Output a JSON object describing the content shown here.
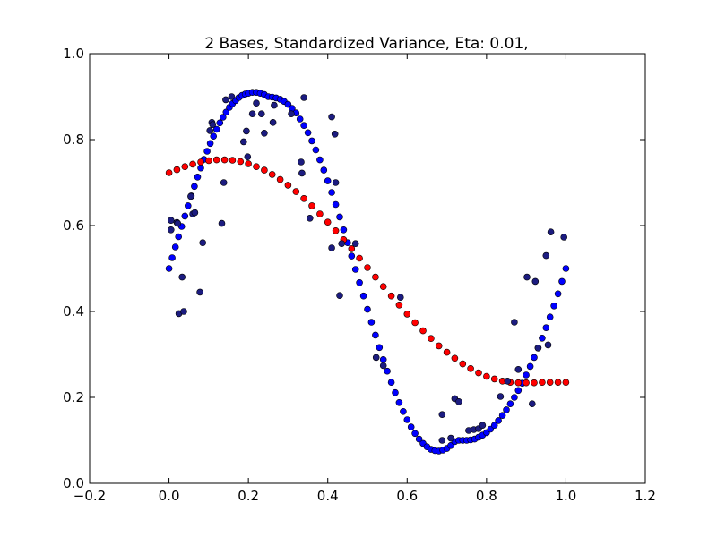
{
  "chart_data": {
    "type": "scatter",
    "title": "2 Bases, Standardized Variance, Eta: 0.01,",
    "xlabel": "",
    "ylabel": "",
    "xlim": [
      -0.2,
      1.2
    ],
    "ylim": [
      0.0,
      1.0
    ],
    "xticks": [
      -0.2,
      0.0,
      0.2,
      0.4,
      0.6,
      0.8,
      1.0,
      1.2
    ],
    "xtick_labels": [
      "−0.2",
      "0.0",
      "0.2",
      "0.4",
      "0.6",
      "0.8",
      "1.0",
      "1.2"
    ],
    "yticks": [
      0.0,
      0.2,
      0.4,
      0.6,
      0.8,
      1.0
    ],
    "ytick_labels": [
      "0.0",
      "0.2",
      "0.4",
      "0.6",
      "0.8",
      "1.0"
    ],
    "grid": false,
    "series": [
      {
        "marker_color": "#0000ff",
        "points": [
          [
            0.0,
            0.5
          ],
          [
            0.008,
            0.525
          ],
          [
            0.016,
            0.55
          ],
          [
            0.024,
            0.574
          ],
          [
            0.032,
            0.598
          ],
          [
            0.04,
            0.622
          ],
          [
            0.048,
            0.646
          ],
          [
            0.056,
            0.669
          ],
          [
            0.064,
            0.691
          ],
          [
            0.072,
            0.713
          ],
          [
            0.08,
            0.734
          ],
          [
            0.088,
            0.754
          ],
          [
            0.096,
            0.773
          ],
          [
            0.104,
            0.791
          ],
          [
            0.112,
            0.808
          ],
          [
            0.12,
            0.824
          ],
          [
            0.128,
            0.839
          ],
          [
            0.136,
            0.852
          ],
          [
            0.144,
            0.864
          ],
          [
            0.152,
            0.875
          ],
          [
            0.16,
            0.884
          ],
          [
            0.168,
            0.891
          ],
          [
            0.176,
            0.898
          ],
          [
            0.184,
            0.903
          ],
          [
            0.192,
            0.906
          ],
          [
            0.2,
            0.908
          ],
          [
            0.21,
            0.91
          ],
          [
            0.22,
            0.91
          ],
          [
            0.23,
            0.908
          ],
          [
            0.24,
            0.905
          ],
          [
            0.25,
            0.9
          ],
          [
            0.26,
            0.899
          ],
          [
            0.27,
            0.897
          ],
          [
            0.28,
            0.894
          ],
          [
            0.29,
            0.889
          ],
          [
            0.3,
            0.882
          ],
          [
            0.31,
            0.873
          ],
          [
            0.32,
            0.862
          ],
          [
            0.33,
            0.848
          ],
          [
            0.34,
            0.833
          ],
          [
            0.35,
            0.816
          ],
          [
            0.36,
            0.797
          ],
          [
            0.37,
            0.776
          ],
          [
            0.38,
            0.753
          ],
          [
            0.39,
            0.729
          ],
          [
            0.4,
            0.704
          ],
          [
            0.41,
            0.677
          ],
          [
            0.42,
            0.649
          ],
          [
            0.43,
            0.62
          ],
          [
            0.44,
            0.59
          ],
          [
            0.45,
            0.56
          ],
          [
            0.46,
            0.529
          ],
          [
            0.47,
            0.498
          ],
          [
            0.48,
            0.467
          ],
          [
            0.49,
            0.436
          ],
          [
            0.5,
            0.405
          ],
          [
            0.51,
            0.375
          ],
          [
            0.52,
            0.345
          ],
          [
            0.53,
            0.316
          ],
          [
            0.54,
            0.288
          ],
          [
            0.55,
            0.261
          ],
          [
            0.56,
            0.235
          ],
          [
            0.57,
            0.211
          ],
          [
            0.58,
            0.188
          ],
          [
            0.59,
            0.167
          ],
          [
            0.6,
            0.148
          ],
          [
            0.61,
            0.131
          ],
          [
            0.62,
            0.116
          ],
          [
            0.63,
            0.103
          ],
          [
            0.64,
            0.093
          ],
          [
            0.65,
            0.085
          ],
          [
            0.66,
            0.079
          ],
          [
            0.67,
            0.076
          ],
          [
            0.68,
            0.075
          ],
          [
            0.69,
            0.077
          ],
          [
            0.7,
            0.081
          ],
          [
            0.71,
            0.088
          ],
          [
            0.72,
            0.097
          ],
          [
            0.73,
            0.1
          ],
          [
            0.74,
            0.1
          ],
          [
            0.75,
            0.1
          ],
          [
            0.76,
            0.101
          ],
          [
            0.77,
            0.103
          ],
          [
            0.78,
            0.107
          ],
          [
            0.79,
            0.112
          ],
          [
            0.8,
            0.118
          ],
          [
            0.81,
            0.126
          ],
          [
            0.82,
            0.135
          ],
          [
            0.83,
            0.146
          ],
          [
            0.84,
            0.158
          ],
          [
            0.85,
            0.171
          ],
          [
            0.86,
            0.185
          ],
          [
            0.87,
            0.2
          ],
          [
            0.88,
            0.216
          ],
          [
            0.89,
            0.233
          ],
          [
            0.9,
            0.252
          ],
          [
            0.91,
            0.272
          ],
          [
            0.92,
            0.293
          ],
          [
            0.93,
            0.315
          ],
          [
            0.94,
            0.338
          ],
          [
            0.95,
            0.362
          ],
          [
            0.96,
            0.387
          ],
          [
            0.97,
            0.413
          ],
          [
            0.98,
            0.441
          ],
          [
            0.99,
            0.47
          ],
          [
            1.0,
            0.5
          ]
        ]
      },
      {
        "marker_color": "#ff0000",
        "points": [
          [
            0.0,
            0.723
          ],
          [
            0.02,
            0.73
          ],
          [
            0.04,
            0.737
          ],
          [
            0.06,
            0.743
          ],
          [
            0.08,
            0.748
          ],
          [
            0.1,
            0.751
          ],
          [
            0.12,
            0.753
          ],
          [
            0.14,
            0.753
          ],
          [
            0.16,
            0.752
          ],
          [
            0.18,
            0.749
          ],
          [
            0.2,
            0.744
          ],
          [
            0.22,
            0.737
          ],
          [
            0.24,
            0.729
          ],
          [
            0.26,
            0.719
          ],
          [
            0.28,
            0.707
          ],
          [
            0.3,
            0.694
          ],
          [
            0.32,
            0.679
          ],
          [
            0.34,
            0.663
          ],
          [
            0.36,
            0.646
          ],
          [
            0.38,
            0.627
          ],
          [
            0.4,
            0.608
          ],
          [
            0.42,
            0.588
          ],
          [
            0.44,
            0.567
          ],
          [
            0.46,
            0.546
          ],
          [
            0.48,
            0.524
          ],
          [
            0.5,
            0.502
          ],
          [
            0.52,
            0.48
          ],
          [
            0.54,
            0.458
          ],
          [
            0.56,
            0.436
          ],
          [
            0.58,
            0.415
          ],
          [
            0.6,
            0.394
          ],
          [
            0.62,
            0.374
          ],
          [
            0.64,
            0.355
          ],
          [
            0.66,
            0.337
          ],
          [
            0.68,
            0.32
          ],
          [
            0.7,
            0.305
          ],
          [
            0.72,
            0.291
          ],
          [
            0.74,
            0.278
          ],
          [
            0.76,
            0.267
          ],
          [
            0.78,
            0.257
          ],
          [
            0.8,
            0.249
          ],
          [
            0.82,
            0.243
          ],
          [
            0.84,
            0.238
          ],
          [
            0.86,
            0.235
          ],
          [
            0.88,
            0.234
          ],
          [
            0.9,
            0.234
          ],
          [
            0.92,
            0.234
          ],
          [
            0.94,
            0.235
          ],
          [
            0.96,
            0.235
          ],
          [
            0.98,
            0.235
          ],
          [
            1.0,
            0.235
          ]
        ]
      },
      {
        "marker_color": "#1c1c80",
        "points": [
          [
            0.005,
            0.612
          ],
          [
            0.005,
            0.59
          ],
          [
            0.02,
            0.607
          ],
          [
            0.022,
            0.605
          ],
          [
            0.025,
            0.395
          ],
          [
            0.033,
            0.48
          ],
          [
            0.037,
            0.4
          ],
          [
            0.055,
            0.668
          ],
          [
            0.06,
            0.627
          ],
          [
            0.065,
            0.63
          ],
          [
            0.078,
            0.445
          ],
          [
            0.085,
            0.56
          ],
          [
            0.103,
            0.821
          ],
          [
            0.108,
            0.84
          ],
          [
            0.11,
            0.835
          ],
          [
            0.133,
            0.605
          ],
          [
            0.138,
            0.7
          ],
          [
            0.143,
            0.893
          ],
          [
            0.158,
            0.9
          ],
          [
            0.188,
            0.795
          ],
          [
            0.195,
            0.82
          ],
          [
            0.198,
            0.76
          ],
          [
            0.21,
            0.86
          ],
          [
            0.22,
            0.885
          ],
          [
            0.233,
            0.86
          ],
          [
            0.24,
            0.815
          ],
          [
            0.262,
            0.84
          ],
          [
            0.265,
            0.88
          ],
          [
            0.308,
            0.86
          ],
          [
            0.333,
            0.748
          ],
          [
            0.335,
            0.722
          ],
          [
            0.34,
            0.898
          ],
          [
            0.355,
            0.617
          ],
          [
            0.41,
            0.853
          ],
          [
            0.418,
            0.813
          ],
          [
            0.42,
            0.7
          ],
          [
            0.43,
            0.437
          ],
          [
            0.435,
            0.558
          ],
          [
            0.47,
            0.558
          ],
          [
            0.41,
            0.548
          ],
          [
            0.522,
            0.293
          ],
          [
            0.54,
            0.274
          ],
          [
            0.583,
            0.433
          ],
          [
            0.688,
            0.16
          ],
          [
            0.688,
            0.1
          ],
          [
            0.71,
            0.105
          ],
          [
            0.72,
            0.197
          ],
          [
            0.73,
            0.19
          ],
          [
            0.755,
            0.123
          ],
          [
            0.768,
            0.125
          ],
          [
            0.78,
            0.127
          ],
          [
            0.79,
            0.135
          ],
          [
            0.835,
            0.202
          ],
          [
            0.853,
            0.238
          ],
          [
            0.87,
            0.375
          ],
          [
            0.88,
            0.265
          ],
          [
            0.902,
            0.48
          ],
          [
            0.915,
            0.185
          ],
          [
            0.923,
            0.47
          ],
          [
            0.93,
            0.315
          ],
          [
            0.95,
            0.53
          ],
          [
            0.955,
            0.322
          ],
          [
            0.962,
            0.585
          ],
          [
            0.995,
            0.573
          ]
        ]
      }
    ]
  }
}
